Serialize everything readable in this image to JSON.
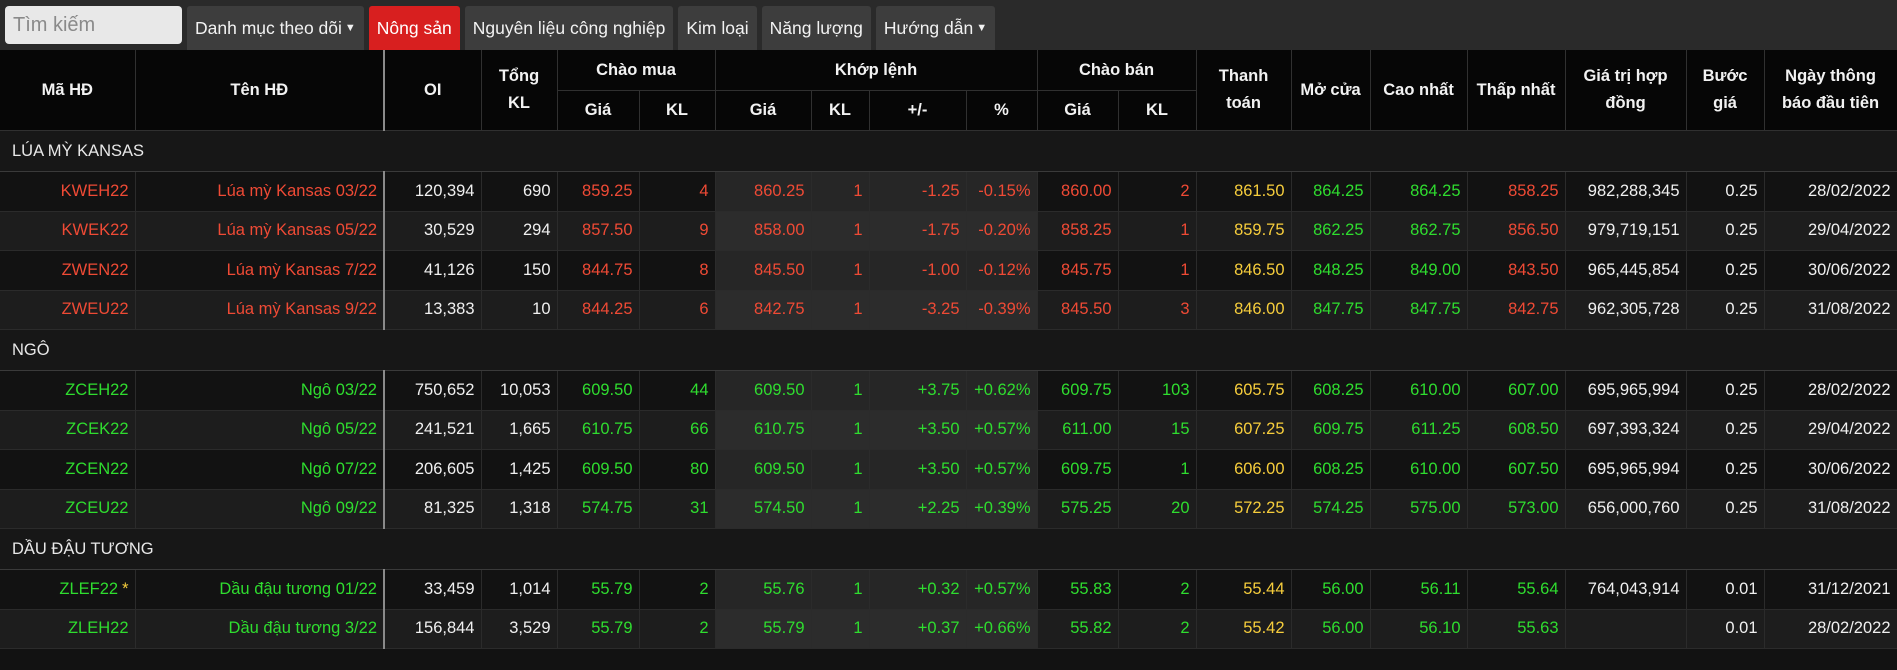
{
  "search": {
    "placeholder": "Tìm kiếm"
  },
  "tabs": [
    {
      "label": "Danh mục theo dõi",
      "dropdown": true,
      "active": false
    },
    {
      "label": "Nông sản",
      "dropdown": false,
      "active": true
    },
    {
      "label": "Nguyên liệu công nghiệp",
      "dropdown": false,
      "active": false
    },
    {
      "label": "Kim loại",
      "dropdown": false,
      "active": false
    },
    {
      "label": "Năng lượng",
      "dropdown": false,
      "active": false
    },
    {
      "label": "Hướng dẫn",
      "dropdown": true,
      "active": false
    }
  ],
  "headers": {
    "code": "Mã HĐ",
    "name": "Tên HĐ",
    "oi": "OI",
    "total_vol": "Tổng KL",
    "bid": "Chào mua",
    "match": "Khớp lệnh",
    "ask": "Chào bán",
    "settle": "Thanh toán",
    "open": "Mở cửa",
    "high": "Cao nhất",
    "low": "Thấp nhất",
    "contract_value": "Giá trị hợp đồng",
    "tick": "Bước giá",
    "first_notice": "Ngày thông báo đầu tiên",
    "price": "Giá",
    "vol": "KL",
    "change": "+/-",
    "pct": "%"
  },
  "colors": {
    "down": "#ef4a35",
    "up": "#2fdd2f",
    "settle": "#f6cd3c",
    "active_tab": "#d81f1f"
  },
  "groups": [
    {
      "title": "LÚA MỲ KANSAS",
      "tone": "red",
      "rows": [
        {
          "code": "KWEH22",
          "name": "Lúa mỳ Kansas 03/22",
          "oi": "120,394",
          "total_vol": "690",
          "bid_price": "859.25",
          "bid_vol": "4",
          "match_price": "860.25",
          "match_vol": "1",
          "change": "-1.25",
          "pct": "-0.15%",
          "ask_price": "860.00",
          "ask_vol": "2",
          "settle": "861.50",
          "open": "864.25",
          "high": "864.25",
          "low": "858.25",
          "contract_value": "982,288,345",
          "tick": "0.25",
          "first_notice": "28/02/2022",
          "star": false
        },
        {
          "code": "KWEK22",
          "name": "Lúa mỳ Kansas 05/22",
          "oi": "30,529",
          "total_vol": "294",
          "bid_price": "857.50",
          "bid_vol": "9",
          "match_price": "858.00",
          "match_vol": "1",
          "change": "-1.75",
          "pct": "-0.20%",
          "ask_price": "858.25",
          "ask_vol": "1",
          "settle": "859.75",
          "open": "862.25",
          "high": "862.75",
          "low": "856.50",
          "contract_value": "979,719,151",
          "tick": "0.25",
          "first_notice": "29/04/2022",
          "star": false
        },
        {
          "code": "ZWEN22",
          "name": "Lúa mỳ Kansas 7/22",
          "oi": "41,126",
          "total_vol": "150",
          "bid_price": "844.75",
          "bid_vol": "8",
          "match_price": "845.50",
          "match_vol": "1",
          "change": "-1.00",
          "pct": "-0.12%",
          "ask_price": "845.75",
          "ask_vol": "1",
          "settle": "846.50",
          "open": "848.25",
          "high": "849.00",
          "low": "843.50",
          "contract_value": "965,445,854",
          "tick": "0.25",
          "first_notice": "30/06/2022",
          "star": false
        },
        {
          "code": "ZWEU22",
          "name": "Lúa mỳ Kansas 9/22",
          "oi": "13,383",
          "total_vol": "10",
          "bid_price": "844.25",
          "bid_vol": "6",
          "match_price": "842.75",
          "match_vol": "1",
          "change": "-3.25",
          "pct": "-0.39%",
          "ask_price": "845.50",
          "ask_vol": "3",
          "settle": "846.00",
          "open": "847.75",
          "high": "847.75",
          "low": "842.75",
          "contract_value": "962,305,728",
          "tick": "0.25",
          "first_notice": "31/08/2022",
          "star": false
        }
      ]
    },
    {
      "title": "NGÔ",
      "tone": "green",
      "rows": [
        {
          "code": "ZCEH22",
          "name": "Ngô 03/22",
          "oi": "750,652",
          "total_vol": "10,053",
          "bid_price": "609.50",
          "bid_vol": "44",
          "match_price": "609.50",
          "match_vol": "1",
          "change": "+3.75",
          "pct": "+0.62%",
          "ask_price": "609.75",
          "ask_vol": "103",
          "settle": "605.75",
          "open": "608.25",
          "high": "610.00",
          "low": "607.00",
          "contract_value": "695,965,994",
          "tick": "0.25",
          "first_notice": "28/02/2022",
          "star": false
        },
        {
          "code": "ZCEK22",
          "name": "Ngô 05/22",
          "oi": "241,521",
          "total_vol": "1,665",
          "bid_price": "610.75",
          "bid_vol": "66",
          "match_price": "610.75",
          "match_vol": "1",
          "change": "+3.50",
          "pct": "+0.57%",
          "ask_price": "611.00",
          "ask_vol": "15",
          "settle": "607.25",
          "open": "609.75",
          "high": "611.25",
          "low": "608.50",
          "contract_value": "697,393,324",
          "tick": "0.25",
          "first_notice": "29/04/2022",
          "star": false
        },
        {
          "code": "ZCEN22",
          "name": "Ngô 07/22",
          "oi": "206,605",
          "total_vol": "1,425",
          "bid_price": "609.50",
          "bid_vol": "80",
          "match_price": "609.50",
          "match_vol": "1",
          "change": "+3.50",
          "pct": "+0.57%",
          "ask_price": "609.75",
          "ask_vol": "1",
          "settle": "606.00",
          "open": "608.25",
          "high": "610.00",
          "low": "607.50",
          "contract_value": "695,965,994",
          "tick": "0.25",
          "first_notice": "30/06/2022",
          "star": false
        },
        {
          "code": "ZCEU22",
          "name": "Ngô 09/22",
          "oi": "81,325",
          "total_vol": "1,318",
          "bid_price": "574.75",
          "bid_vol": "31",
          "match_price": "574.50",
          "match_vol": "1",
          "change": "+2.25",
          "pct": "+0.39%",
          "ask_price": "575.25",
          "ask_vol": "20",
          "settle": "572.25",
          "open": "574.25",
          "high": "575.00",
          "low": "573.00",
          "contract_value": "656,000,760",
          "tick": "0.25",
          "first_notice": "31/08/2022",
          "star": false
        }
      ]
    },
    {
      "title": "DẦU ĐẬU TƯƠNG",
      "tone": "green",
      "rows": [
        {
          "code": "ZLEF22",
          "name": "Dầu đậu tương 01/22",
          "oi": "33,459",
          "total_vol": "1,014",
          "bid_price": "55.79",
          "bid_vol": "2",
          "match_price": "55.76",
          "match_vol": "1",
          "change": "+0.32",
          "pct": "+0.57%",
          "ask_price": "55.83",
          "ask_vol": "2",
          "settle": "55.44",
          "open": "56.00",
          "high": "56.11",
          "low": "55.64",
          "contract_value": "764,043,914",
          "tick": "0.01",
          "first_notice": "31/12/2021",
          "star": true,
          "star_char": "*"
        },
        {
          "code": "ZLEH22",
          "name": "Dầu đậu tương 3/22",
          "oi": "156,844",
          "total_vol": "3,529",
          "bid_price": "55.79",
          "bid_vol": "2",
          "match_price": "55.79",
          "match_vol": "1",
          "change": "+0.37",
          "pct": "+0.66%",
          "ask_price": "55.82",
          "ask_vol": "2",
          "settle": "55.42",
          "open": "56.00",
          "high": "56.10",
          "low": "55.63",
          "contract_value": "",
          "tick": "0.01",
          "first_notice": "28/02/2022",
          "star": false
        }
      ]
    }
  ]
}
